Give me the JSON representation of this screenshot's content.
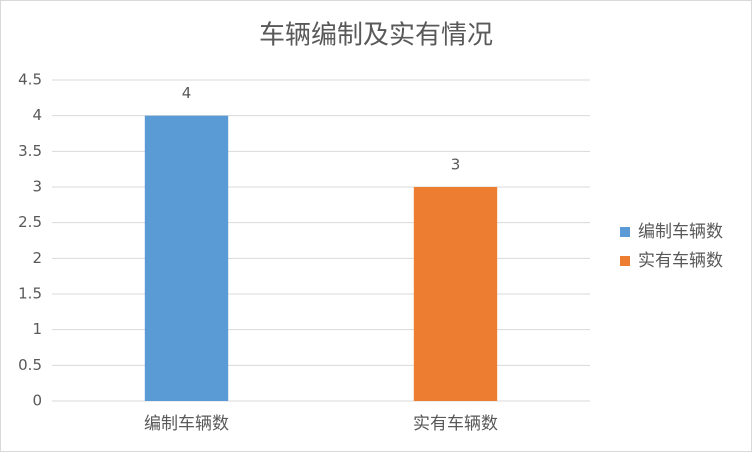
{
  "chart_data": {
    "type": "bar",
    "title": "车辆编制及实有情况",
    "categories": [
      "编制车辆数",
      "实有车辆数"
    ],
    "values": [
      4,
      3
    ],
    "colors": [
      "#5b9bd5",
      "#ed7d31"
    ],
    "ylim": [
      0,
      4.5
    ],
    "yticks": [
      0,
      0.5,
      1,
      1.5,
      2,
      2.5,
      3,
      3.5,
      4,
      4.5
    ],
    "grid": true,
    "legend": "right"
  }
}
